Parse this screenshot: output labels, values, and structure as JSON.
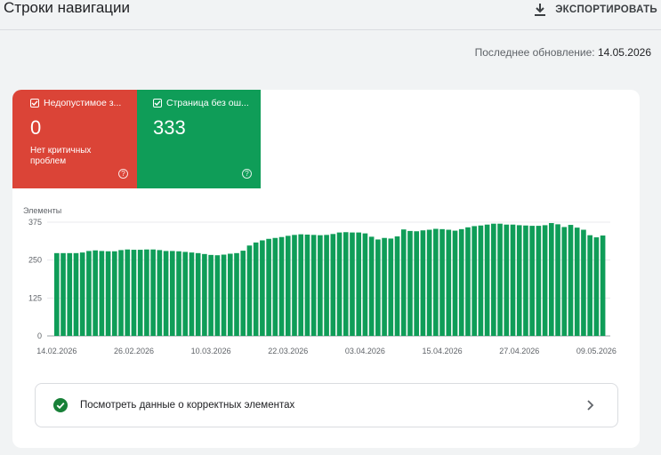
{
  "header": {
    "title": "Строки навигации",
    "export_label": "ЭКСПОРТИРОВАТЬ"
  },
  "last_update": {
    "label": "Последнее обновление:",
    "date": "14.05.2026"
  },
  "tiles": {
    "error": {
      "title": "Недопустимое з...",
      "count": "0",
      "subtitle": "Нет критичных проблем",
      "color": "#db4437"
    },
    "valid": {
      "title": "Страница без ош...",
      "count": "333",
      "color": "#0f9d58"
    }
  },
  "chart_data": {
    "type": "bar",
    "ylabel": "Элементы",
    "ylim": [
      0,
      375
    ],
    "yticks": [
      0,
      125,
      250,
      375
    ],
    "xtick_labels": [
      "14.02.2026",
      "26.02.2026",
      "10.03.2026",
      "22.03.2026",
      "03.04.2026",
      "15.04.2026",
      "27.04.2026",
      "09.05.2026"
    ],
    "start_date": "14.02.2026",
    "bar_color": "#0f9d58",
    "grid": true,
    "values": [
      273,
      273,
      273,
      273,
      275,
      280,
      282,
      280,
      279,
      279,
      283,
      285,
      284,
      284,
      285,
      285,
      283,
      280,
      280,
      279,
      277,
      275,
      273,
      270,
      267,
      266,
      268,
      271,
      273,
      281,
      298,
      308,
      315,
      320,
      323,
      326,
      330,
      333,
      335,
      334,
      333,
      332,
      333,
      336,
      341,
      342,
      341,
      341,
      338,
      327,
      318,
      323,
      321,
      328,
      351,
      346,
      345,
      348,
      350,
      353,
      352,
      350,
      347,
      352,
      358,
      362,
      364,
      367,
      370,
      370,
      367,
      367,
      365,
      364,
      363,
      363,
      365,
      372,
      368,
      359,
      366,
      357,
      350,
      332,
      325,
      331
    ]
  },
  "view_valid": {
    "label": "Посмотреть данные о корректных элементах"
  }
}
